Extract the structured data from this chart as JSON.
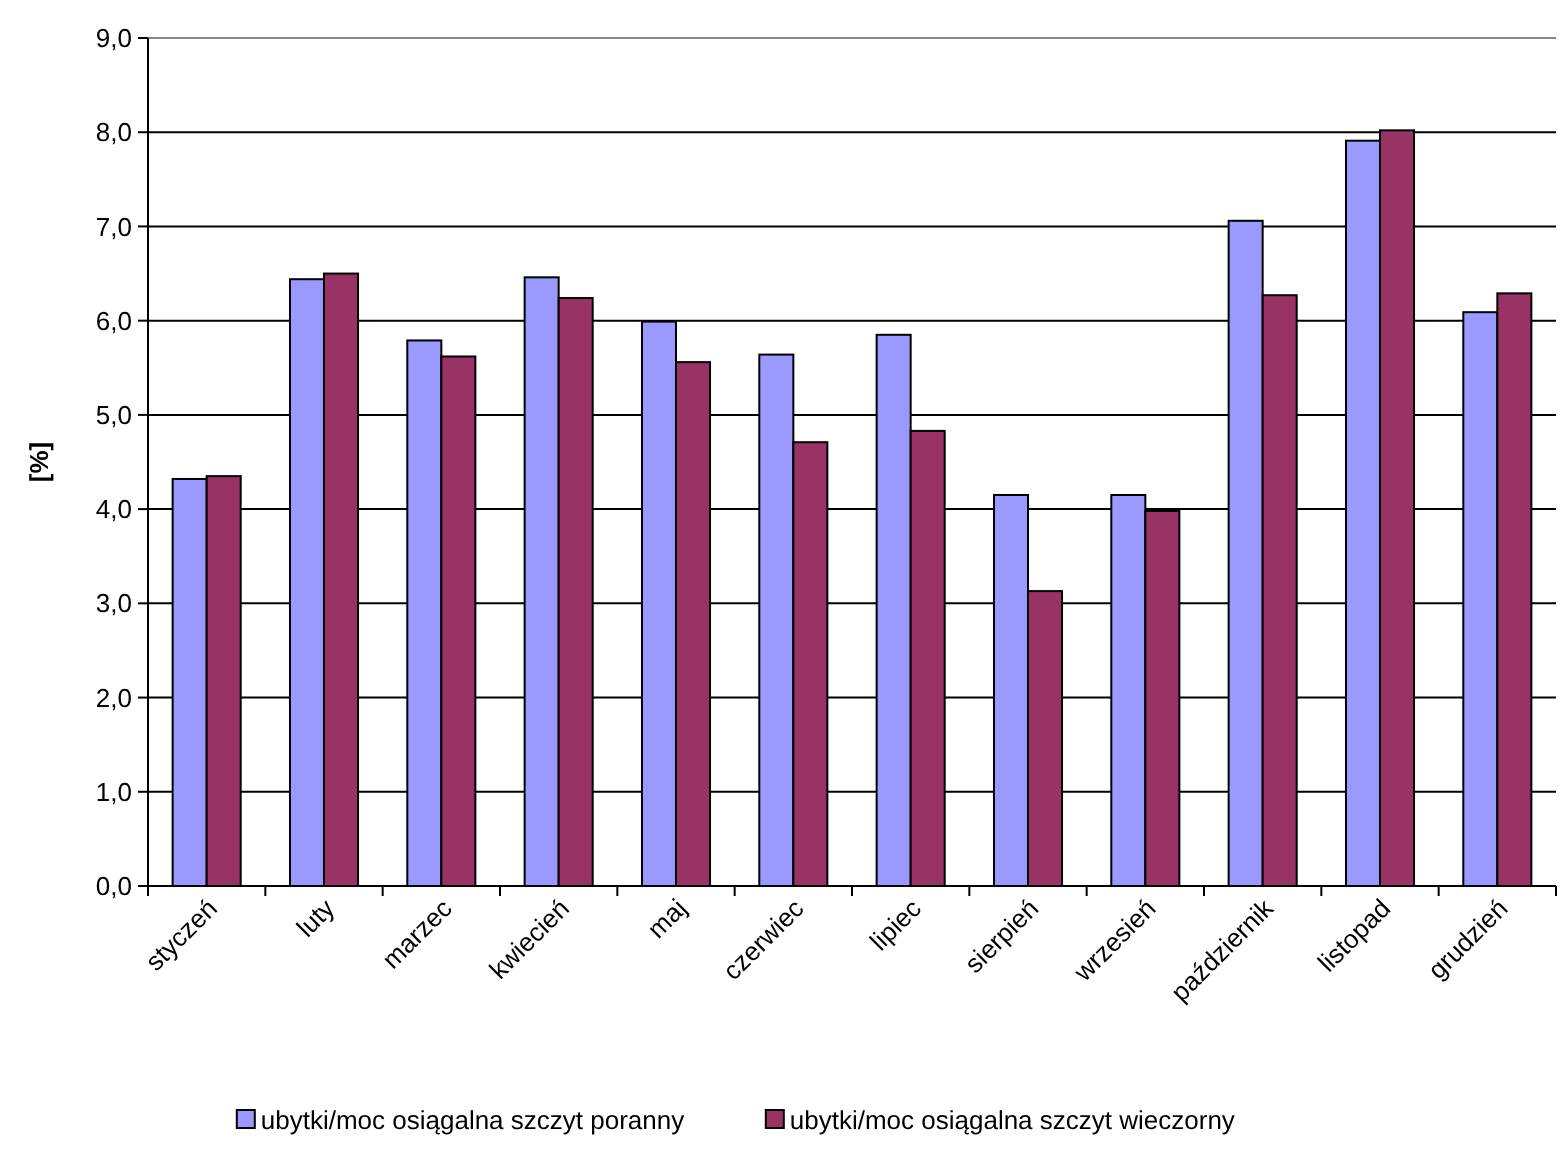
{
  "chart_data": {
    "type": "bar",
    "ylabel": "[%]",
    "categories": [
      "styczeń",
      "luty",
      "marzec",
      "kwiecień",
      "maj",
      "czerwiec",
      "lipiec",
      "sierpień",
      "wrzesień",
      "październik",
      "listopad",
      "grudzień"
    ],
    "series": [
      {
        "name": "ubytki/moc osiągalna szczyt poranny",
        "color": "#9999ff",
        "values": [
          4.32,
          6.44,
          5.79,
          6.46,
          5.99,
          5.64,
          5.85,
          4.15,
          4.15,
          7.06,
          7.91,
          6.09
        ]
      },
      {
        "name": "ubytki/moc osiągalna szczyt wieczorny",
        "color": "#993366",
        "values": [
          4.35,
          6.5,
          5.62,
          6.24,
          5.56,
          4.71,
          4.83,
          3.13,
          3.98,
          6.27,
          8.02,
          6.29
        ]
      }
    ],
    "ylim": [
      0,
      9
    ],
    "yticks": [
      {
        "value": 0,
        "label": "0,0"
      },
      {
        "value": 1,
        "label": "1,0"
      },
      {
        "value": 2,
        "label": "2,0"
      },
      {
        "value": 3,
        "label": "3,0"
      },
      {
        "value": 4,
        "label": "4,0"
      },
      {
        "value": 5,
        "label": "5,0"
      },
      {
        "value": 6,
        "label": "6,0"
      },
      {
        "value": 7,
        "label": "7,0"
      },
      {
        "value": 8,
        "label": "8,0"
      },
      {
        "value": 9,
        "label": "9,0"
      }
    ],
    "grid": "y",
    "legend": "bottom"
  }
}
